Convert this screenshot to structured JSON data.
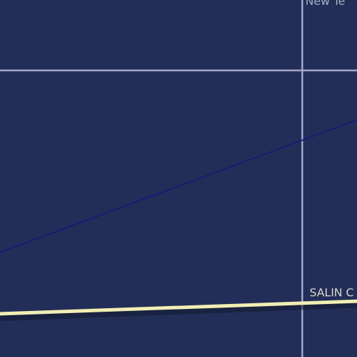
{
  "map": {
    "colors": {
      "water": "#232e58",
      "grid_line": "#a6a9cc",
      "route_line": "#141e74",
      "road": "#f2eeb4",
      "road_shadow": "#141a30",
      "place_label": "#a7acc6",
      "road_label": "#d9d8cf"
    },
    "labels": {
      "place": "New Te",
      "road": "SALIN C"
    }
  }
}
